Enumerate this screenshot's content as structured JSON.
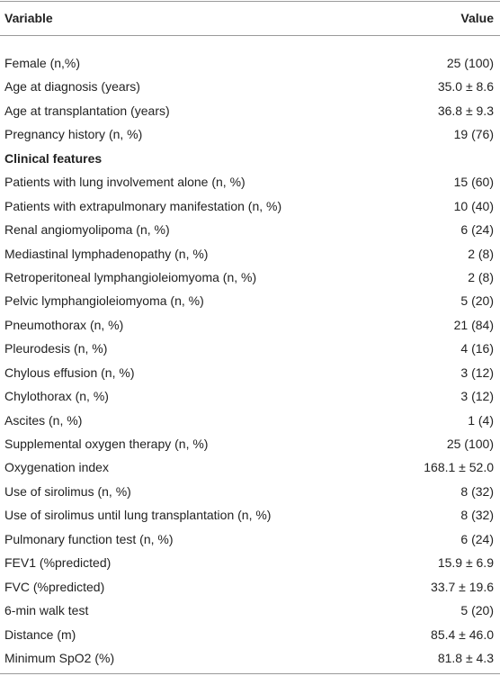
{
  "table": {
    "header": [
      "Variable",
      "Value"
    ],
    "rows": [
      [
        "Female (n,%)",
        "25 (100)"
      ],
      [
        "Age at diagnosis (years)",
        "35.0 ± 8.6"
      ],
      [
        "Age at transplantation (years)",
        "36.8 ± 9.3"
      ],
      [
        "Pregnancy history (n, %)",
        "19 (76)"
      ],
      [
        "Clinical features"
      ],
      [
        "Patients with lung involvement alone (n, %)",
        "15 (60)"
      ],
      [
        "Patients with extrapulmonary manifestation (n, %)",
        "10 (40)"
      ],
      [
        "Renal angiomyolipoma (n, %)",
        "6 (24)"
      ],
      [
        "Mediastinal lymphadenopathy (n, %)",
        "2 (8)"
      ],
      [
        "Retroperitoneal lymphangioleiomyoma (n, %)",
        "2 (8)"
      ],
      [
        "Pelvic lymphangioleiomyoma (n, %)",
        "5 (20)"
      ],
      [
        "Pneumothorax (n, %)",
        "21 (84)"
      ],
      [
        "Pleurodesis (n, %)",
        "4 (16)"
      ],
      [
        "Chylous effusion (n, %)",
        "3 (12)"
      ],
      [
        "Chylothorax (n, %)",
        "3 (12)"
      ],
      [
        "Ascites (n, %)",
        "1 (4)"
      ],
      [
        "Supplemental oxygen therapy (n, %)",
        "25 (100)"
      ],
      [
        "Oxygenation index",
        "168.1 ± 52.0"
      ],
      [
        "Use of sirolimus (n, %)",
        "8 (32)"
      ],
      [
        "Use of sirolimus until lung transplantation (n, %)",
        "8 (32)"
      ],
      [
        "Pulmonary function test (n, %)",
        "6 (24)"
      ],
      [
        "FEV1 (%predicted)",
        "15.9 ± 6.9"
      ],
      [
        "FVC (%predicted)",
        "33.7 ± 19.6"
      ],
      [
        "6-min walk test",
        "5 (20)"
      ],
      [
        "Distance (m)",
        "85.4 ± 46.0"
      ],
      [
        "Minimum SpO2 (%)",
        "81.8 ± 4.3"
      ]
    ]
  }
}
